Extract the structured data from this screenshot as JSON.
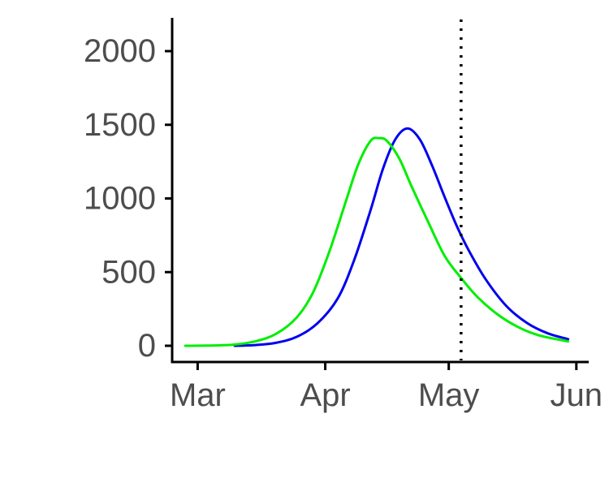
{
  "chart_data": {
    "type": "line",
    "title": "",
    "xlabel": "",
    "ylabel": "",
    "grid": false,
    "legend": "none",
    "xlim": [
      "2020-02-24",
      "2020-06-04"
    ],
    "ylim": [
      0,
      2200
    ],
    "x_ticks": [
      {
        "value": "2020-03-01",
        "label": "Mar"
      },
      {
        "value": "2020-04-01",
        "label": "Apr"
      },
      {
        "value": "2020-05-01",
        "label": "May"
      },
      {
        "value": "2020-06-01",
        "label": "Jun"
      }
    ],
    "y_ticks": [
      {
        "value": 0,
        "label": "0"
      },
      {
        "value": 500,
        "label": "500"
      },
      {
        "value": 1000,
        "label": "1000"
      },
      {
        "value": 1500,
        "label": "1500"
      },
      {
        "value": 2000,
        "label": "2000"
      }
    ],
    "vertical_line": {
      "x": "2020-05-04",
      "style": "dotted",
      "color": "#000000"
    },
    "series": [
      {
        "color": "#0000ee",
        "points": [
          [
            "2020-03-10",
            0
          ],
          [
            "2020-03-15",
            5
          ],
          [
            "2020-03-20",
            20
          ],
          [
            "2020-03-25",
            60
          ],
          [
            "2020-03-30",
            150
          ],
          [
            "2020-04-04",
            320
          ],
          [
            "2020-04-08",
            580
          ],
          [
            "2020-04-12",
            920
          ],
          [
            "2020-04-15",
            1200
          ],
          [
            "2020-04-18",
            1400
          ],
          [
            "2020-04-21",
            1475
          ],
          [
            "2020-04-24",
            1400
          ],
          [
            "2020-04-27",
            1220
          ],
          [
            "2020-04-30",
            1010
          ],
          [
            "2020-05-03",
            810
          ],
          [
            "2020-05-06",
            640
          ],
          [
            "2020-05-10",
            450
          ],
          [
            "2020-05-15",
            270
          ],
          [
            "2020-05-20",
            155
          ],
          [
            "2020-05-25",
            85
          ],
          [
            "2020-05-30",
            45
          ]
        ]
      },
      {
        "color": "#00ee00",
        "points": [
          [
            "2020-02-27",
            0
          ],
          [
            "2020-03-05",
            2
          ],
          [
            "2020-03-10",
            8
          ],
          [
            "2020-03-15",
            30
          ],
          [
            "2020-03-20",
            80
          ],
          [
            "2020-03-25",
            190
          ],
          [
            "2020-03-29",
            360
          ],
          [
            "2020-04-02",
            640
          ],
          [
            "2020-04-06",
            980
          ],
          [
            "2020-04-09",
            1230
          ],
          [
            "2020-04-12",
            1390
          ],
          [
            "2020-04-14",
            1410
          ],
          [
            "2020-04-16",
            1390
          ],
          [
            "2020-04-19",
            1270
          ],
          [
            "2020-04-22",
            1080
          ],
          [
            "2020-04-26",
            840
          ],
          [
            "2020-04-30",
            610
          ],
          [
            "2020-05-04",
            460
          ],
          [
            "2020-05-08",
            330
          ],
          [
            "2020-05-13",
            210
          ],
          [
            "2020-05-18",
            125
          ],
          [
            "2020-05-23",
            70
          ],
          [
            "2020-05-30",
            30
          ]
        ]
      }
    ]
  }
}
